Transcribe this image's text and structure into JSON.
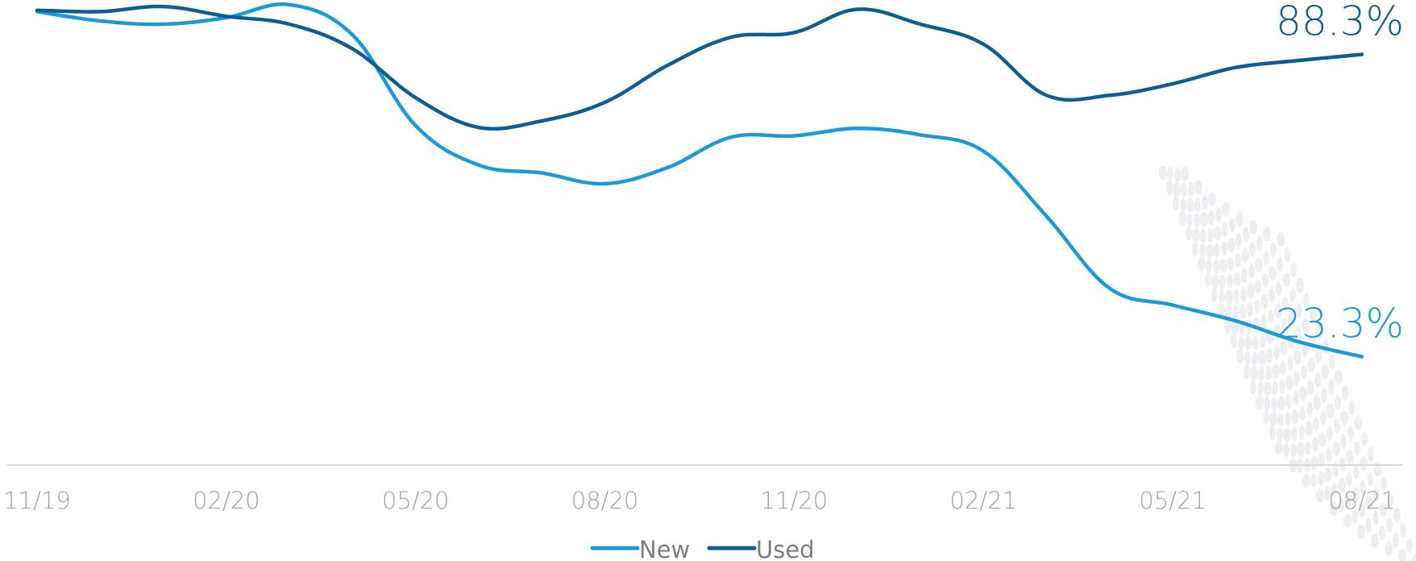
{
  "chart_data": {
    "type": "line",
    "x": [
      "11/19",
      "12/19",
      "01/20",
      "02/20",
      "03/20",
      "04/20",
      "05/20",
      "06/20",
      "07/20",
      "08/20",
      "09/20",
      "10/20",
      "11/20",
      "12/20",
      "01/21",
      "02/21",
      "03/21",
      "04/21",
      "05/21",
      "06/21",
      "07/21",
      "08/21"
    ],
    "tick_labels": [
      "11/19",
      "02/20",
      "05/20",
      "08/20",
      "11/20",
      "02/21",
      "05/21",
      "08/21"
    ],
    "ylim": [
      0,
      100
    ],
    "grid": false,
    "legend_position": "bottom-center",
    "series": [
      {
        "name": "New",
        "color": "#1b9ad6",
        "values": [
          97.5,
          95.5,
          94.8,
          96.2,
          99.0,
          92.5,
          73.0,
          64.5,
          62.8,
          60.5,
          64.0,
          70.5,
          70.8,
          72.4,
          71.0,
          67.5,
          53.5,
          38.0,
          34.4,
          31.0,
          26.5,
          23.3
        ],
        "end_label": "23.3%"
      },
      {
        "name": "Used",
        "color": "#0e5e93",
        "values": [
          97.8,
          97.5,
          98.6,
          96.5,
          94.8,
          89.5,
          79.0,
          72.6,
          74.0,
          78.0,
          86.0,
          92.0,
          93.0,
          98.0,
          94.8,
          90.5,
          79.5,
          79.5,
          82.0,
          85.5,
          87.0,
          88.3
        ],
        "end_label": "88.3%"
      }
    ]
  }
}
